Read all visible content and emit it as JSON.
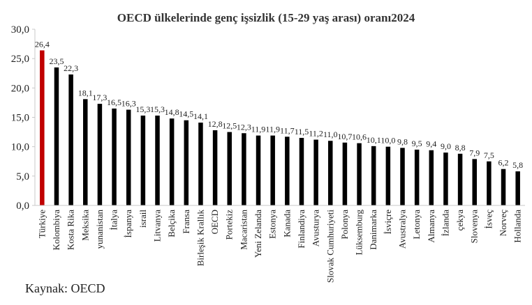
{
  "chart_data": {
    "type": "bar",
    "title": "OECD ülkelerinde genç işsizlik (15-29 yaş arası) oranı2024",
    "categories": [
      "Türkiye",
      "Kolombiya",
      "Kosta Rika",
      "Meksika",
      "yunanistan",
      "İtalya",
      "İspanya",
      "israil",
      "Litvanya",
      "Belçika",
      "Fransa",
      "Birleşik Krallık",
      "OECD",
      "Portekiz",
      "Macaristan",
      "Yeni Zelanda",
      "Estonya",
      "Kanada",
      "Finlandiya",
      "Avusturya",
      "Slovak Cumhuriyeti",
      "Polonya",
      "Lüksemburg",
      "Danimarka",
      "İsviçre",
      "Avustralya",
      "Letonya",
      "Almanya",
      "İzlanda",
      "çekya",
      "Slovenya",
      "İsveç",
      "Norveç",
      "Hollanda"
    ],
    "values": [
      26.4,
      23.5,
      22.3,
      18.1,
      17.3,
      16.5,
      16.3,
      15.3,
      15.3,
      14.8,
      14.5,
      14.1,
      12.8,
      12.5,
      12.3,
      11.9,
      11.9,
      11.7,
      11.5,
      11.2,
      11.0,
      10.7,
      10.6,
      10.1,
      10.0,
      9.8,
      9.5,
      9.4,
      9.0,
      8.8,
      7.9,
      7.5,
      6.2,
      5.8
    ],
    "data_labels": [
      "26,4",
      "23,5",
      "22,3",
      "18,1",
      "17,3",
      "16,5",
      "16,3",
      "15,3",
      "15,3",
      "14,8",
      "14,5",
      "14,1",
      "12,8",
      "12,5",
      "12,3",
      "11,9",
      "11,9",
      "11,7",
      "11,5",
      "11,2",
      "11,0",
      "10,7",
      "10,6",
      "10,1",
      "10,0",
      "9,8",
      "9,5",
      "9,4",
      "9,0",
      "8,8",
      "7,9",
      "7,5",
      "6,2",
      "5,8"
    ],
    "y_ticks": [
      "0,0",
      "5,0",
      "10,0",
      "15,0",
      "20,0",
      "25,0",
      "30,0"
    ],
    "ylim": [
      0,
      30
    ],
    "grid": false,
    "legend": "none",
    "colors": {
      "highlight": "#c00000",
      "bar": "#000000",
      "axis": "#c8c8c8"
    },
    "highlight_index": 0
  },
  "source_note": "Kaynak: OECD"
}
